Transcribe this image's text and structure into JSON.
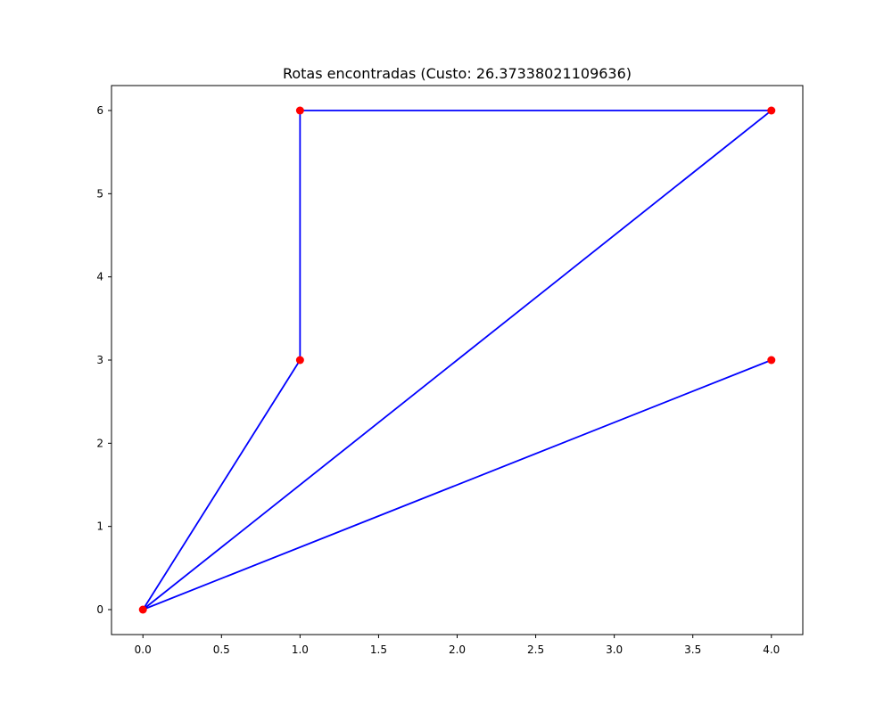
{
  "chart_data": {
    "type": "line",
    "title": "Rotas encontradas (Custo: 26.37338021109636)",
    "xlabel": "",
    "ylabel": "",
    "xlim": [
      -0.2,
      4.2
    ],
    "ylim": [
      -0.3,
      6.3
    ],
    "x_ticks": [
      0.0,
      0.5,
      1.0,
      1.5,
      2.0,
      2.5,
      3.0,
      3.5,
      4.0
    ],
    "x_tick_labels": [
      "0.0",
      "0.5",
      "1.0",
      "1.5",
      "2.0",
      "2.5",
      "3.0",
      "3.5",
      "4.0"
    ],
    "y_ticks": [
      0,
      1,
      2,
      3,
      4,
      5,
      6
    ],
    "y_tick_labels": [
      "0",
      "1",
      "2",
      "3",
      "4",
      "5",
      "6"
    ],
    "grid": false,
    "points": [
      {
        "x": 0,
        "y": 0
      },
      {
        "x": 1,
        "y": 3
      },
      {
        "x": 1,
        "y": 6
      },
      {
        "x": 4,
        "y": 6
      },
      {
        "x": 4,
        "y": 3
      }
    ],
    "routes": [
      {
        "path": [
          {
            "x": 0,
            "y": 0
          },
          {
            "x": 1,
            "y": 3
          },
          {
            "x": 1,
            "y": 6
          },
          {
            "x": 4,
            "y": 6
          },
          {
            "x": 0,
            "y": 0
          }
        ]
      },
      {
        "path": [
          {
            "x": 0,
            "y": 0
          },
          {
            "x": 4,
            "y": 3
          },
          {
            "x": 0,
            "y": 0
          }
        ]
      }
    ],
    "colors": {
      "route": "#0000ff",
      "point": "#ff0000"
    }
  }
}
